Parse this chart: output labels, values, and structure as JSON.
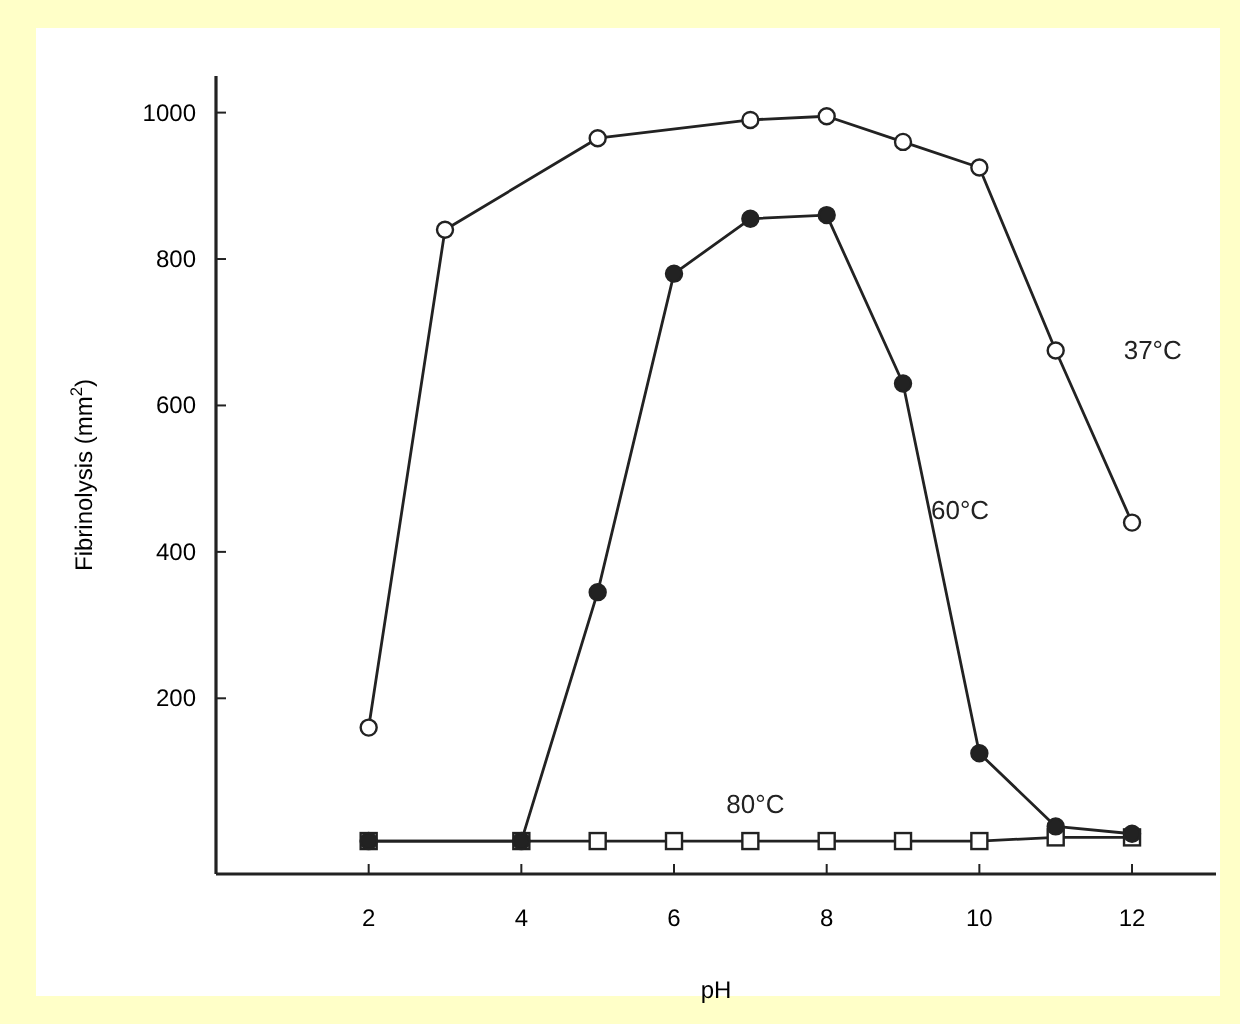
{
  "chart_data": {
    "type": "line",
    "xlabel": "pH",
    "ylabel": "Fibrinolysis (mm$^{2}$)",
    "xlim": [
      0,
      13.1
    ],
    "xticks": [
      2,
      4,
      6,
      8,
      10,
      12
    ],
    "ylim": [
      -40,
      1050
    ],
    "yticks": [
      200,
      400,
      600,
      800,
      1000
    ],
    "grid": false,
    "series": [
      {
        "name": "37°C",
        "color": "#ffffff",
        "marker": "circle",
        "x": [
          2,
          3,
          5,
          7,
          8,
          9,
          10,
          11,
          12
        ],
        "values": [
          160,
          840,
          965,
          990,
          995,
          960,
          925,
          675,
          440
        ]
      },
      {
        "name": "60°C",
        "color": "#222222",
        "marker": "circle",
        "x": [
          2,
          4,
          5,
          6,
          7,
          8,
          9,
          10,
          11,
          12
        ],
        "values": [
          5,
          5,
          345,
          780,
          855,
          860,
          630,
          125,
          25,
          15
        ]
      },
      {
        "name": "80°C",
        "color": "#ffffff",
        "marker": "square",
        "x": [
          2,
          4,
          5,
          6,
          7,
          8,
          9,
          10,
          11,
          12
        ],
        "values": [
          5,
          5,
          5,
          5,
          5,
          5,
          5,
          5,
          10,
          10
        ]
      }
    ]
  }
}
